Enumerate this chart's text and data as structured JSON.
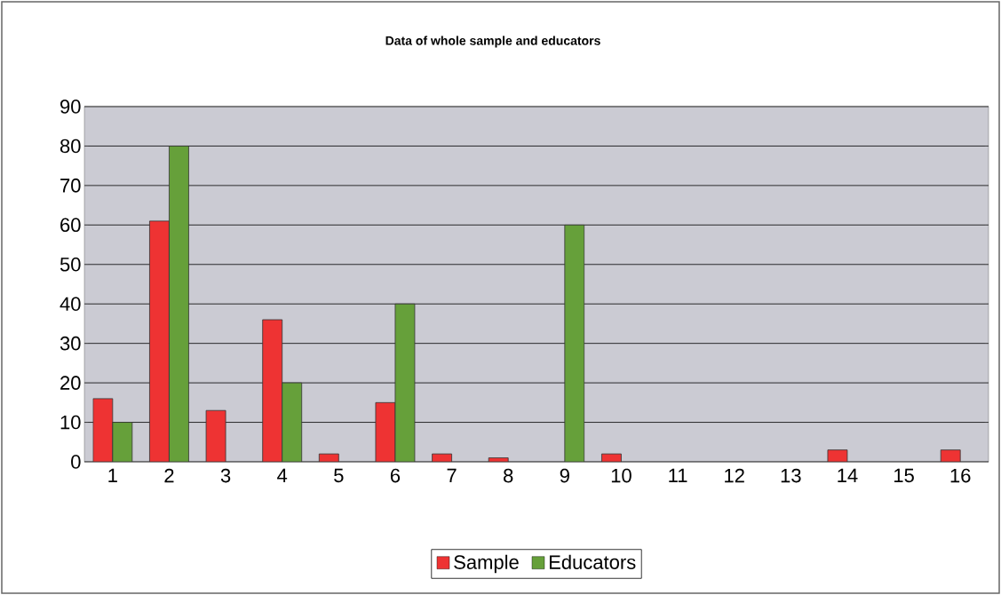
{
  "chart_data": {
    "type": "bar",
    "title": "Data of whole sample and educators",
    "categories": [
      "1",
      "2",
      "3",
      "4",
      "5",
      "6",
      "7",
      "8",
      "9",
      "10",
      "11",
      "12",
      "13",
      "14",
      "15",
      "16"
    ],
    "series": [
      {
        "name": "Sample",
        "color": "#ee3333",
        "values": [
          16,
          61,
          13,
          36,
          2,
          15,
          2,
          1,
          0,
          2,
          0,
          0,
          0,
          3,
          0,
          3
        ]
      },
      {
        "name": "Educators",
        "color": "#66a03a",
        "values": [
          10,
          80,
          0,
          20,
          0,
          40,
          0,
          0,
          60,
          0,
          0,
          0,
          0,
          0,
          0,
          0
        ]
      }
    ],
    "ylim": [
      0,
      90
    ],
    "yticks": [
      0,
      10,
      20,
      30,
      40,
      50,
      60,
      70,
      80,
      90
    ],
    "grid": "y",
    "legend": "bottom"
  }
}
